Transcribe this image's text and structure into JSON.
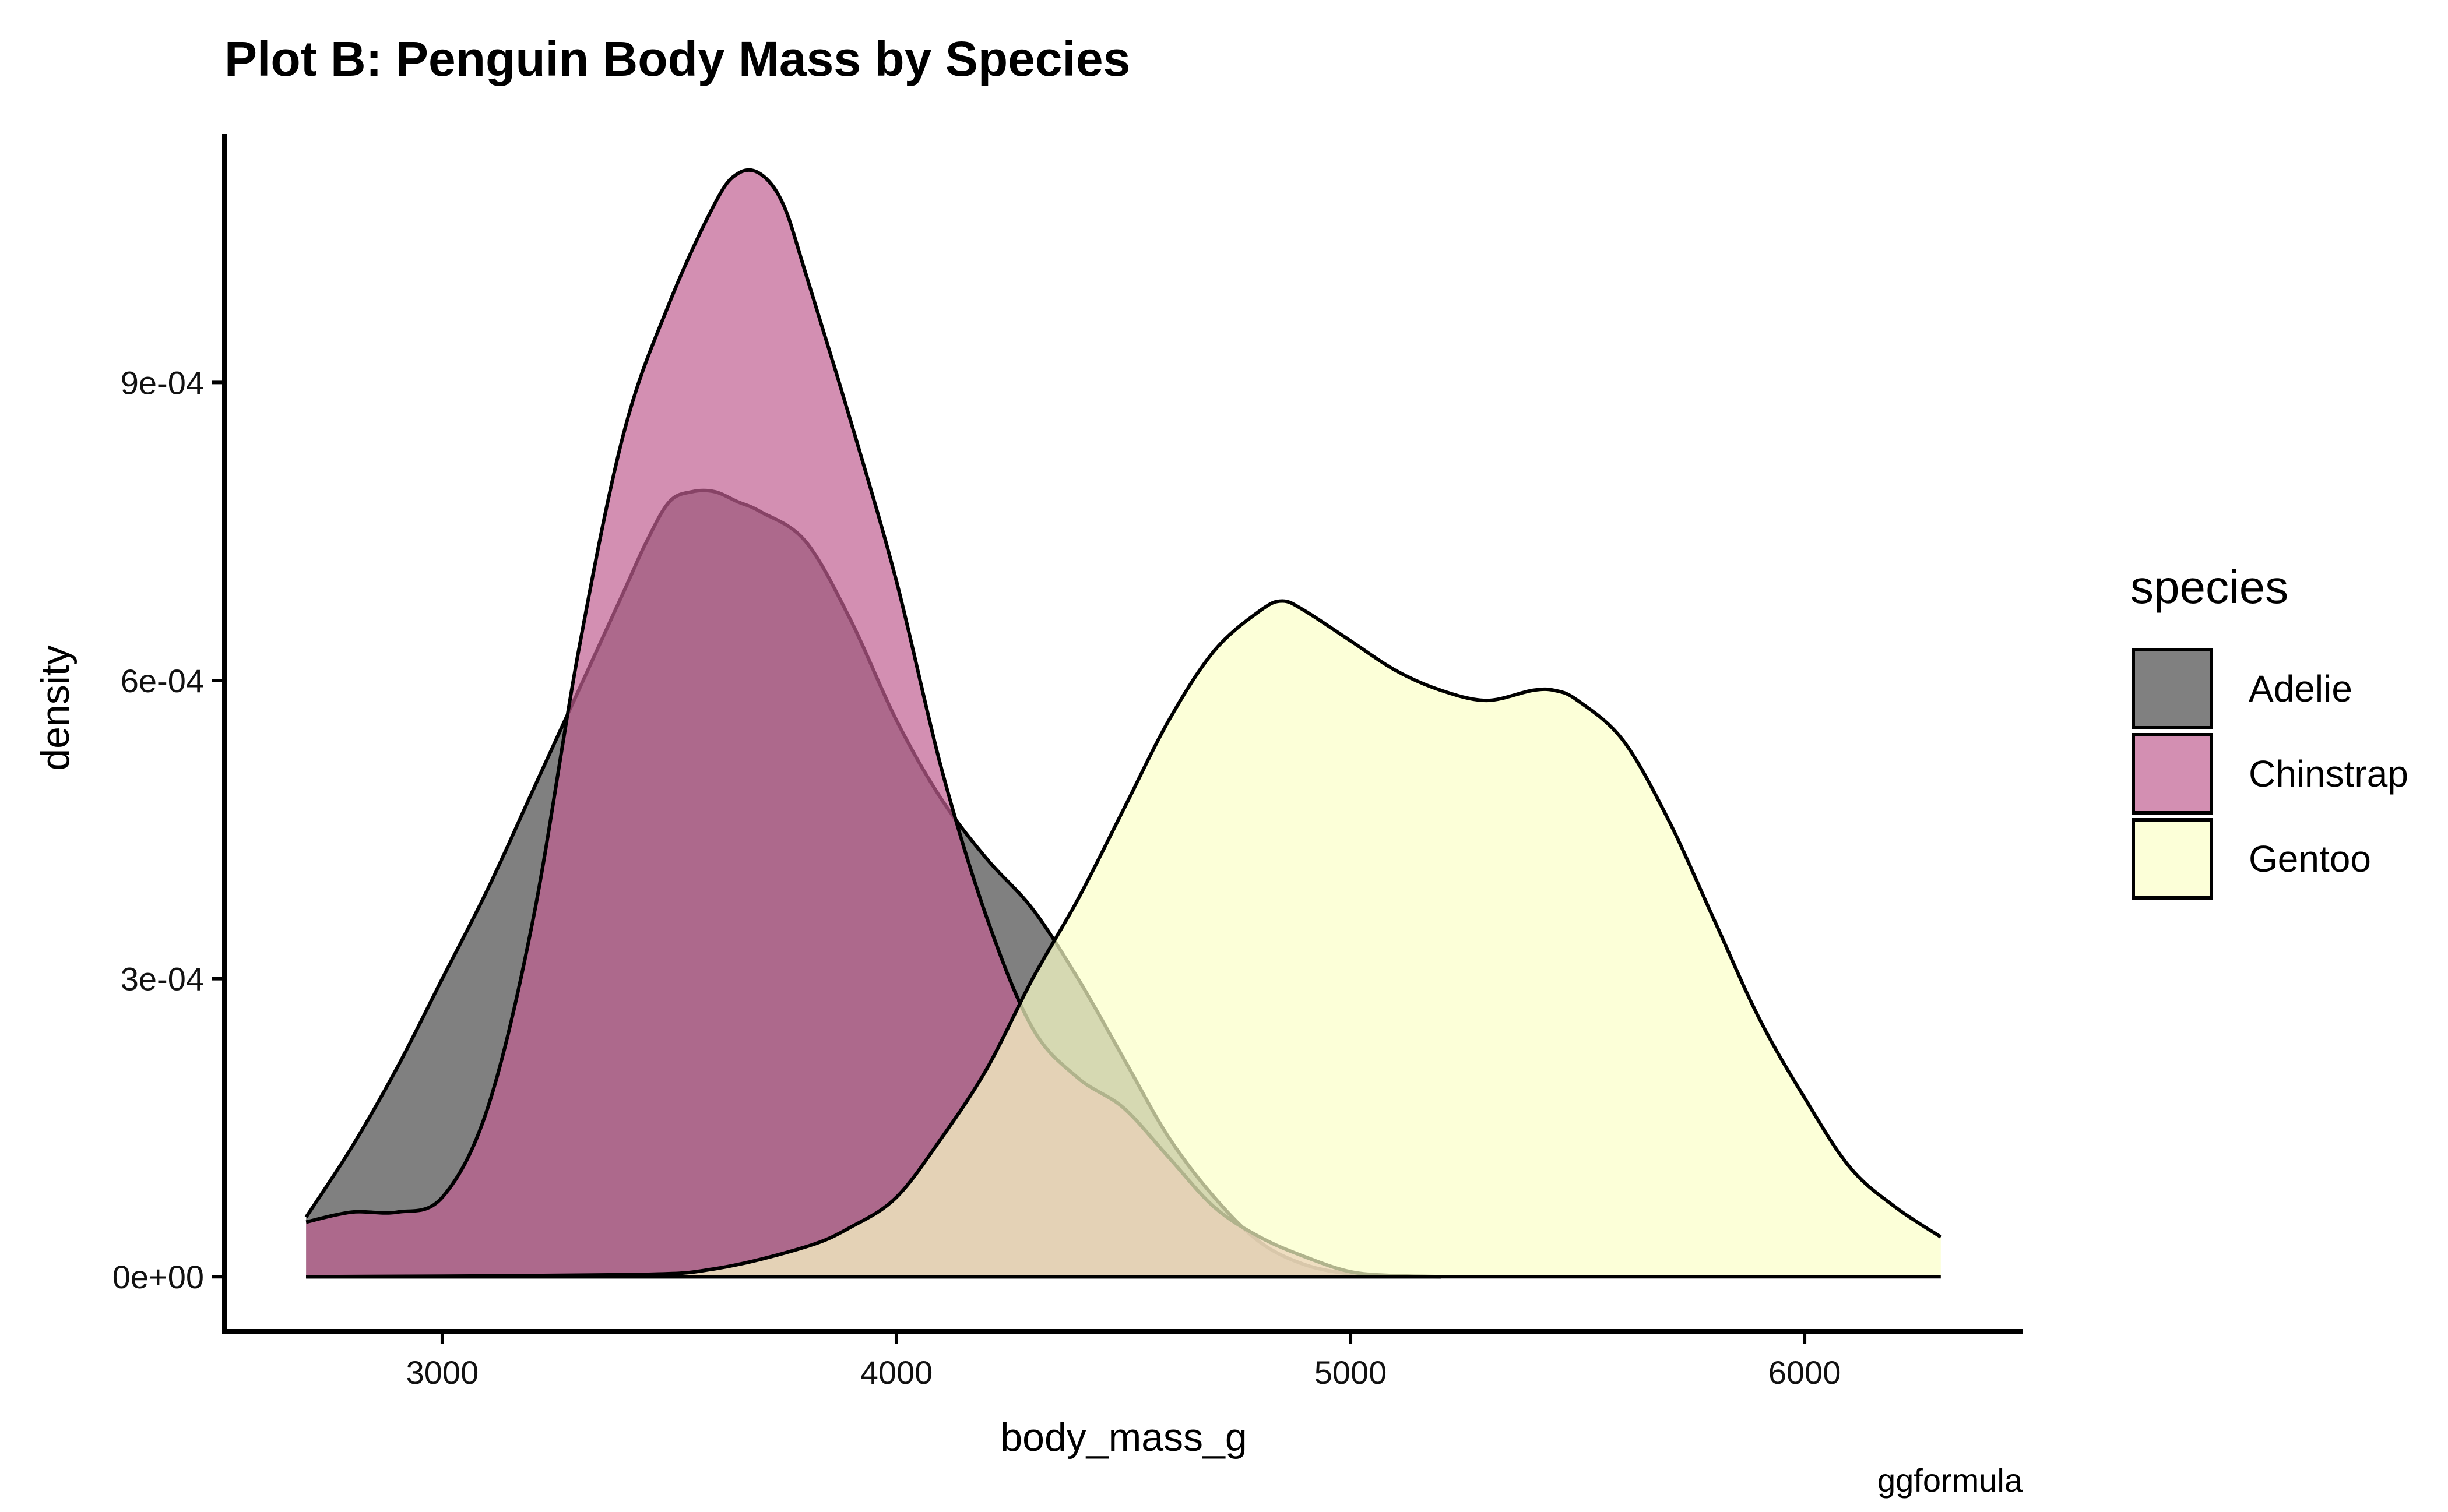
{
  "chart_data": {
    "type": "area",
    "title": "Plot B: Penguin Body Mass by Species",
    "xlabel": "body_mass_g",
    "ylabel": "density",
    "caption": "ggformula",
    "xlim": [
      2520,
      6480
    ],
    "ylim": [
      -5.5e-05,
      0.00115
    ],
    "x_ticks": [
      3000,
      4000,
      5000,
      6000
    ],
    "x_tick_labels": [
      "3000",
      "4000",
      "5000",
      "6000"
    ],
    "y_ticks": [
      0,
      0.0003,
      0.0006,
      0.0009
    ],
    "y_tick_labels": [
      "0e+00",
      "3e-04",
      "6e-04",
      "9e-04"
    ],
    "grid": false,
    "legend": {
      "title": "species",
      "position": "right"
    },
    "series": [
      {
        "name": "Adelie",
        "fill": "#808080",
        "stroke": "#000000",
        "opacity": 1.0,
        "x": [
          2700,
          2800,
          2900,
          3000,
          3100,
          3200,
          3300,
          3400,
          3450,
          3500,
          3550,
          3600,
          3650,
          3700,
          3800,
          3900,
          4000,
          4100,
          4200,
          4300,
          4400,
          4500,
          4600,
          4700,
          4800,
          4900,
          5000,
          5100,
          5200
        ],
        "y": [
          6e-05,
          0.00013,
          0.00021,
          0.0003,
          0.00039,
          0.00049,
          0.00059,
          0.00069,
          0.00074,
          0.00078,
          0.00079,
          0.00079,
          0.00078,
          0.00077,
          0.00074,
          0.00066,
          0.00056,
          0.00048,
          0.00042,
          0.00037,
          0.0003,
          0.00022,
          0.00014,
          8e-05,
          3.5e-05,
          1.2e-05,
          3e-06,
          1e-06,
          0.0
        ]
      },
      {
        "name": "Chinstrap",
        "fill": "#c05f91",
        "stroke": "#000000",
        "opacity": 0.7,
        "x": [
          2700,
          2800,
          2900,
          3000,
          3100,
          3200,
          3300,
          3400,
          3500,
          3600,
          3650,
          3700,
          3750,
          3800,
          3900,
          4000,
          4100,
          4200,
          4300,
          4400,
          4500,
          4600,
          4700,
          4800,
          4900,
          5000,
          5100,
          5200
        ],
        "y": [
          5.5e-05,
          6.5e-05,
          6.5e-05,
          8e-05,
          0.00017,
          0.00036,
          0.00063,
          0.00085,
          0.00098,
          0.00108,
          0.00111,
          0.00111,
          0.00108,
          0.00101,
          0.00086,
          0.0007,
          0.00051,
          0.00036,
          0.00025,
          0.0002,
          0.00017,
          0.00012,
          7e-05,
          4e-05,
          2e-05,
          5e-06,
          1e-06,
          0.0
        ]
      },
      {
        "name": "Gentoo",
        "fill": "#fbffc8",
        "stroke": "#000000",
        "opacity": 0.7,
        "x": [
          2700,
          3400,
          3600,
          3800,
          3900,
          4000,
          4100,
          4200,
          4300,
          4400,
          4500,
          4600,
          4700,
          4800,
          4850,
          4900,
          5000,
          5100,
          5200,
          5300,
          5400,
          5450,
          5500,
          5600,
          5700,
          5800,
          5900,
          6000,
          6100,
          6200,
          6300
        ],
        "y": [
          0.0,
          2e-06,
          8e-06,
          3e-05,
          5e-05,
          8e-05,
          0.00014,
          0.00021,
          0.0003,
          0.00038,
          0.00047,
          0.00056,
          0.00063,
          0.00067,
          0.00068,
          0.00067,
          0.00064,
          0.00061,
          0.00059,
          0.00058,
          0.00059,
          0.00059,
          0.00058,
          0.00054,
          0.00046,
          0.00036,
          0.00026,
          0.00018,
          0.00011,
          7e-05,
          4e-05
        ]
      }
    ]
  }
}
